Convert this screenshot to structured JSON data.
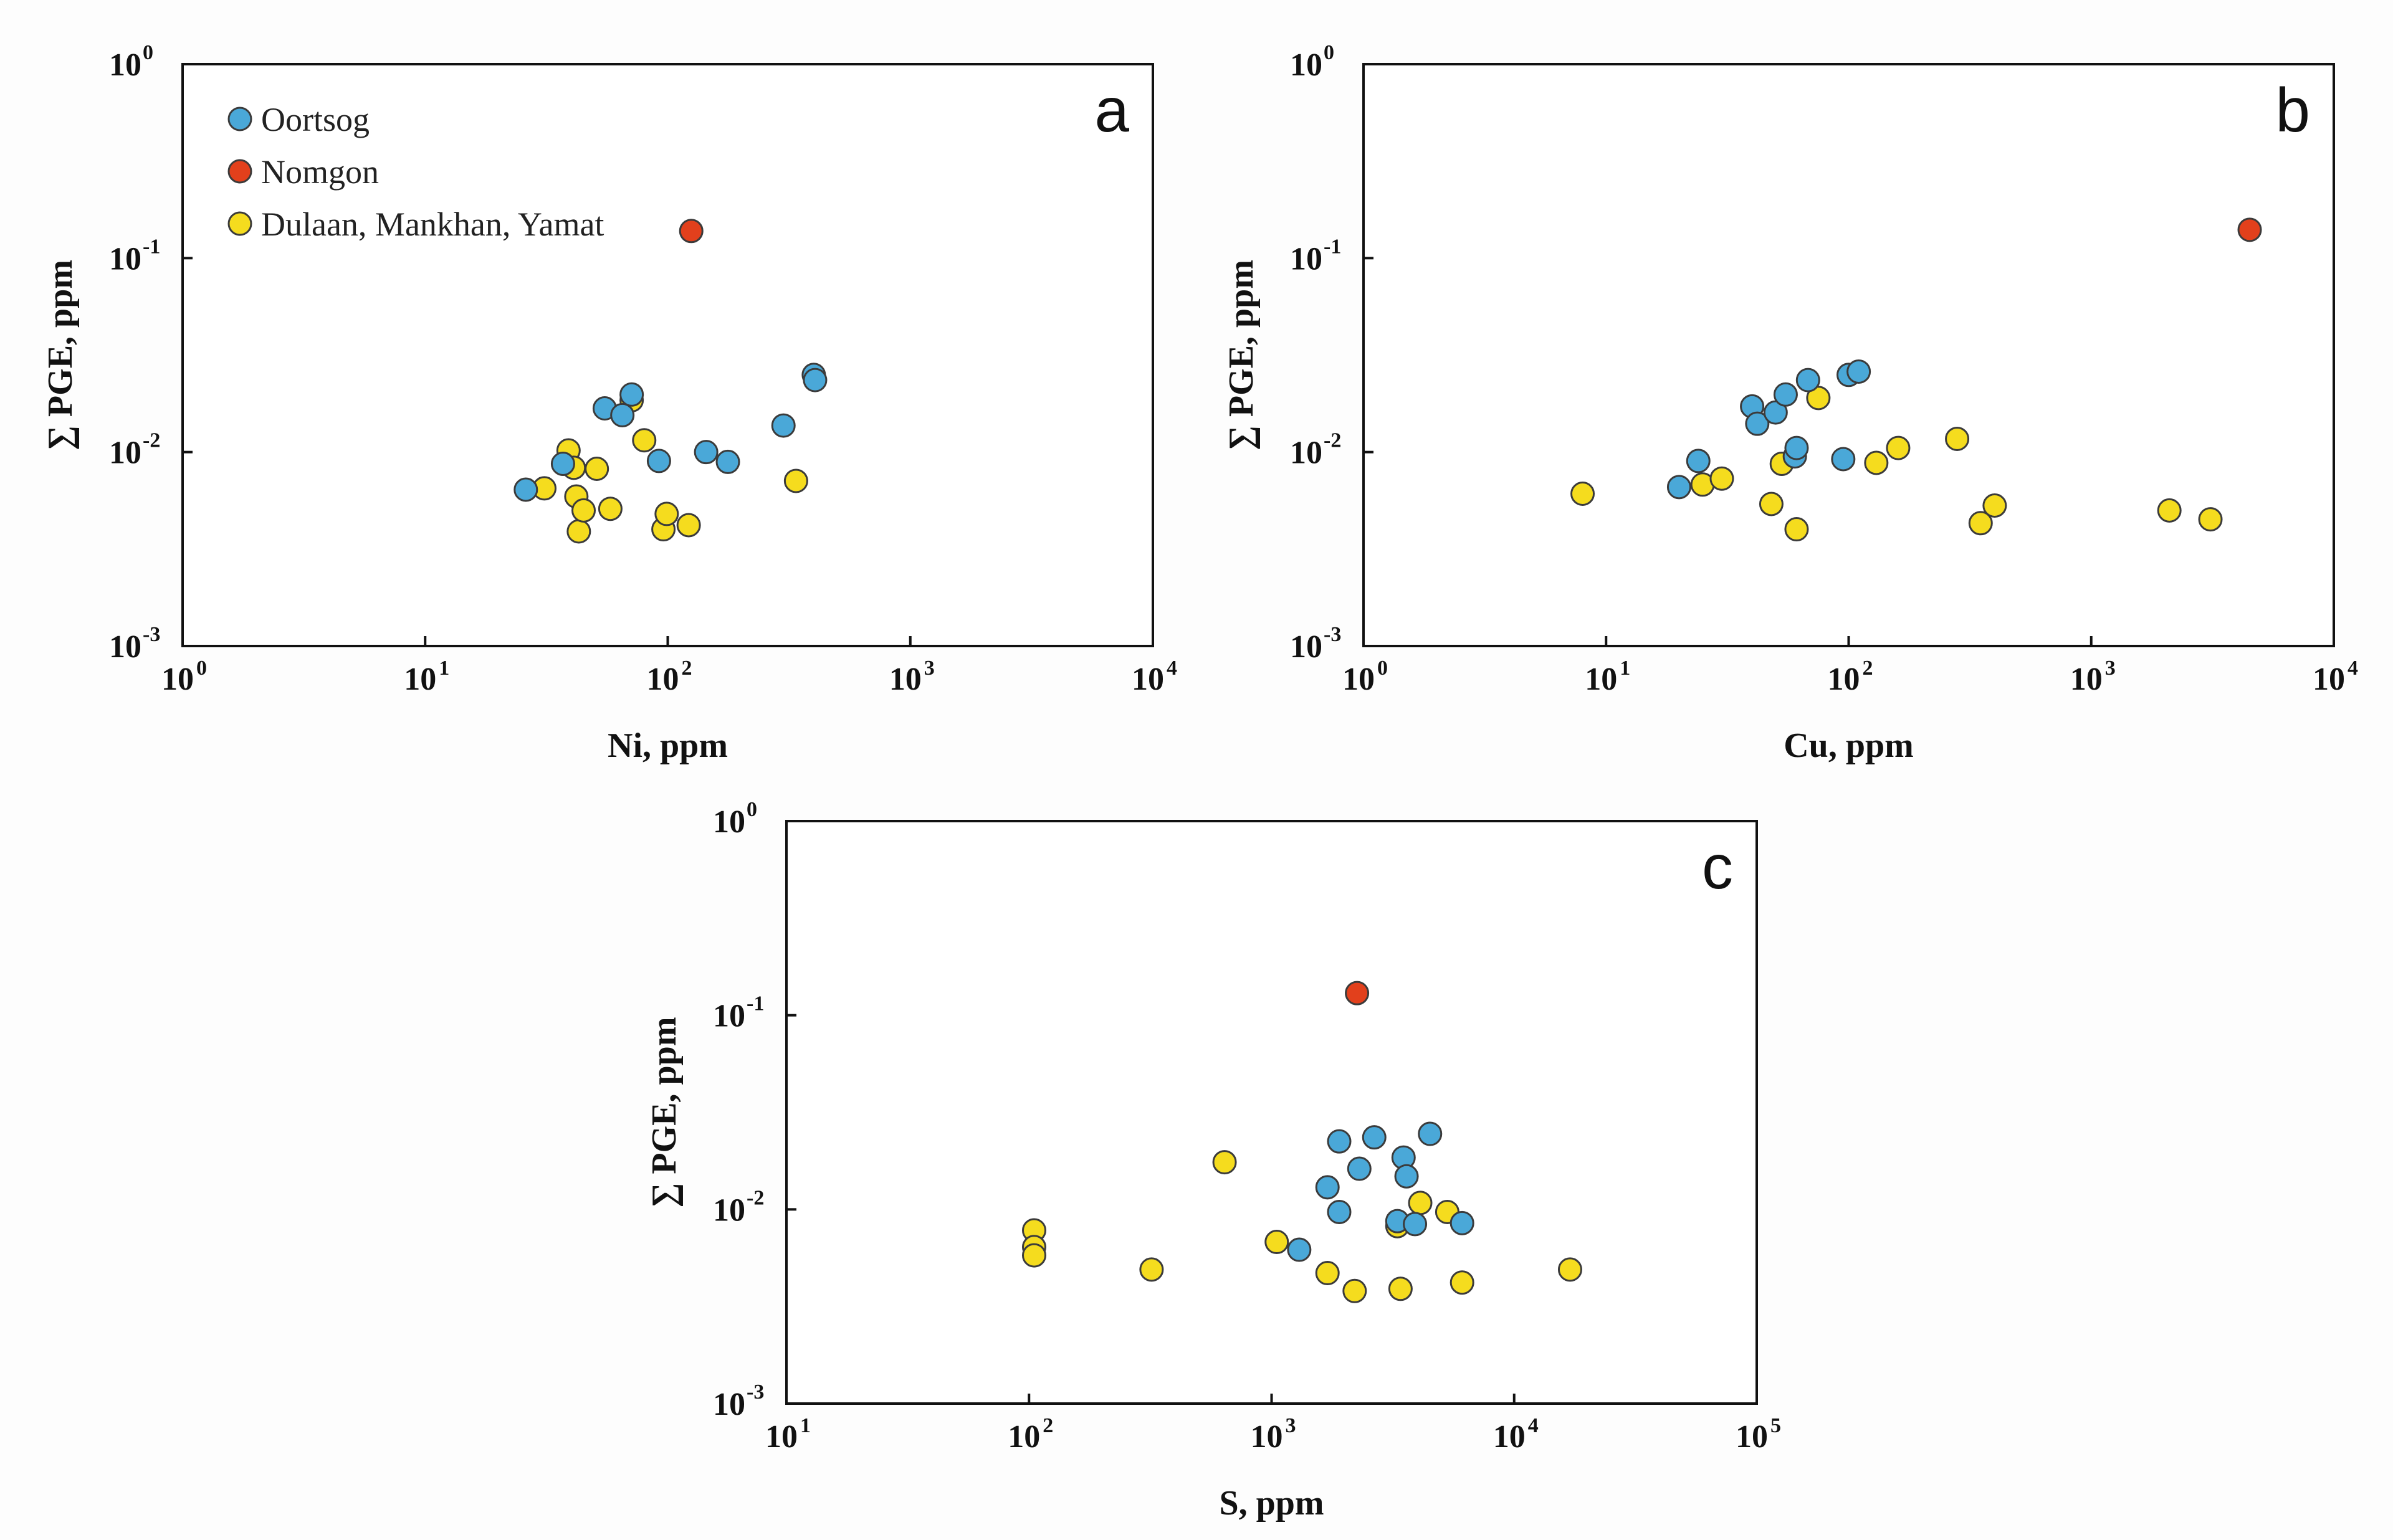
{
  "colors": {
    "Oortsog": "#4aa8d8",
    "Nomgon": "#e2401c",
    "Dulaan, Mankhan, Yamat": "#f5dc1e"
  },
  "legend": {
    "entries": [
      {
        "name": "Oortsog",
        "color": "#4aa8d8"
      },
      {
        "name": "Nomgon",
        "color": "#e2401c"
      },
      {
        "name": "Dulaan, Mankhan, Yamat",
        "color": "#f5dc1e"
      }
    ]
  },
  "chart_data": [
    {
      "panel": "a",
      "type": "scatter",
      "xlabel": "Ni, ppm",
      "ylabel": "∑ PGE, ppm",
      "xscale": "log",
      "yscale": "log",
      "xlim": [
        1,
        10000
      ],
      "ylim": [
        0.001,
        1
      ],
      "xticks": [
        {
          "base": "10",
          "exp": "0"
        },
        {
          "base": "10",
          "exp": "1"
        },
        {
          "base": "10",
          "exp": "2"
        },
        {
          "base": "10",
          "exp": "3"
        },
        {
          "base": "10",
          "exp": "4"
        }
      ],
      "yticks": [
        {
          "base": "10",
          "exp": "0"
        },
        {
          "base": "10",
          "exp": "-1"
        },
        {
          "base": "10",
          "exp": "-2"
        },
        {
          "base": "10",
          "exp": "-3"
        }
      ],
      "legend": "top-left",
      "series": [
        {
          "name": "Dulaan, Mankhan, Yamat",
          "points": [
            [
              31,
              0.0065
            ],
            [
              39,
              0.0102
            ],
            [
              41,
              0.0083
            ],
            [
              42,
              0.0059
            ],
            [
              43,
              0.0039
            ],
            [
              45,
              0.005
            ],
            [
              51,
              0.0082
            ],
            [
              58,
              0.0051
            ],
            [
              71,
              0.0185
            ],
            [
              80,
              0.0115
            ],
            [
              96,
              0.004
            ],
            [
              99,
              0.0048
            ],
            [
              122,
              0.0042
            ],
            [
              338,
              0.0071
            ]
          ]
        },
        {
          "name": "Oortsog",
          "points": [
            [
              26,
              0.0064
            ],
            [
              37,
              0.0087
            ],
            [
              55,
              0.0168
            ],
            [
              65,
              0.0155
            ],
            [
              71,
              0.0198
            ],
            [
              92,
              0.009
            ],
            [
              144,
              0.01
            ],
            [
              177,
              0.0089
            ],
            [
              300,
              0.0137
            ],
            [
              400,
              0.025
            ],
            [
              405,
              0.0235
            ]
          ]
        },
        {
          "name": "Nomgon",
          "points": [
            [
              125,
              0.138
            ]
          ]
        }
      ]
    },
    {
      "panel": "b",
      "type": "scatter",
      "xlabel": "Cu, ppm",
      "ylabel": "∑ PGE, ppm",
      "xscale": "log",
      "yscale": "log",
      "xlim": [
        1,
        10000
      ],
      "ylim": [
        0.001,
        1
      ],
      "xticks": [
        {
          "base": "10",
          "exp": "0"
        },
        {
          "base": "10",
          "exp": "1"
        },
        {
          "base": "10",
          "exp": "2"
        },
        {
          "base": "10",
          "exp": "3"
        },
        {
          "base": "10",
          "exp": "4"
        }
      ],
      "yticks": [
        {
          "base": "10",
          "exp": "0"
        },
        {
          "base": "10",
          "exp": "-1"
        },
        {
          "base": "10",
          "exp": "-2"
        },
        {
          "base": "10",
          "exp": "-3"
        }
      ],
      "series": [
        {
          "name": "Dulaan, Mankhan, Yamat",
          "points": [
            [
              8,
              0.0061
            ],
            [
              25,
              0.0068
            ],
            [
              30,
              0.0073
            ],
            [
              48,
              0.0054
            ],
            [
              53,
              0.0087
            ],
            [
              61,
              0.004
            ],
            [
              75,
              0.019
            ],
            [
              130,
              0.0088
            ],
            [
              160,
              0.0105
            ],
            [
              280,
              0.0117
            ],
            [
              350,
              0.0043
            ],
            [
              400,
              0.0053
            ],
            [
              2100,
              0.005
            ],
            [
              3100,
              0.0045
            ]
          ]
        },
        {
          "name": "Oortsog",
          "points": [
            [
              20,
              0.0066
            ],
            [
              24,
              0.009
            ],
            [
              40,
              0.0172
            ],
            [
              42,
              0.014
            ],
            [
              50,
              0.016
            ],
            [
              55,
              0.0198
            ],
            [
              60,
              0.0095
            ],
            [
              61,
              0.0105
            ],
            [
              68,
              0.0235
            ],
            [
              95,
              0.0092
            ],
            [
              100,
              0.025
            ],
            [
              110,
              0.026
            ]
          ]
        },
        {
          "name": "Nomgon",
          "points": [
            [
              4500,
              0.14
            ]
          ]
        }
      ]
    },
    {
      "panel": "c",
      "type": "scatter",
      "xlabel": "S, ppm",
      "ylabel": "∑ PGE, ppm",
      "xscale": "log",
      "yscale": "log",
      "xlim": [
        10,
        100000
      ],
      "ylim": [
        0.001,
        1
      ],
      "xticks": [
        {
          "base": "10",
          "exp": "1"
        },
        {
          "base": "10",
          "exp": "2"
        },
        {
          "base": "10",
          "exp": "3"
        },
        {
          "base": "10",
          "exp": "4"
        },
        {
          "base": "10",
          "exp": "5"
        }
      ],
      "yticks": [
        {
          "base": "10",
          "exp": "0"
        },
        {
          "base": "10",
          "exp": "-1"
        },
        {
          "base": "10",
          "exp": "-2"
        },
        {
          "base": "10",
          "exp": "-3"
        }
      ],
      "series": [
        {
          "name": "Dulaan, Mankhan, Yamat",
          "points": [
            [
              105,
              0.0078
            ],
            [
              105,
              0.0064
            ],
            [
              105,
              0.0058
            ],
            [
              320,
              0.0049
            ],
            [
              640,
              0.0175
            ],
            [
              1050,
              0.0068
            ],
            [
              1700,
              0.0047
            ],
            [
              2200,
              0.0038
            ],
            [
              3300,
              0.0082
            ],
            [
              3400,
              0.0039
            ],
            [
              4100,
              0.0108
            ],
            [
              5300,
              0.0097
            ],
            [
              6100,
              0.0042
            ],
            [
              17000,
              0.0049
            ]
          ]
        },
        {
          "name": "Oortsog",
          "points": [
            [
              1300,
              0.0062
            ],
            [
              1700,
              0.013
            ],
            [
              1900,
              0.0224
            ],
            [
              1900,
              0.0097
            ],
            [
              2300,
              0.0162
            ],
            [
              2650,
              0.0235
            ],
            [
              3300,
              0.0087
            ],
            [
              3500,
              0.0185
            ],
            [
              3600,
              0.0148
            ],
            [
              3900,
              0.0084
            ],
            [
              4500,
              0.0245
            ],
            [
              6100,
              0.0085
            ]
          ]
        },
        {
          "name": "Nomgon",
          "points": [
            [
              2250,
              0.13
            ]
          ]
        }
      ]
    }
  ]
}
